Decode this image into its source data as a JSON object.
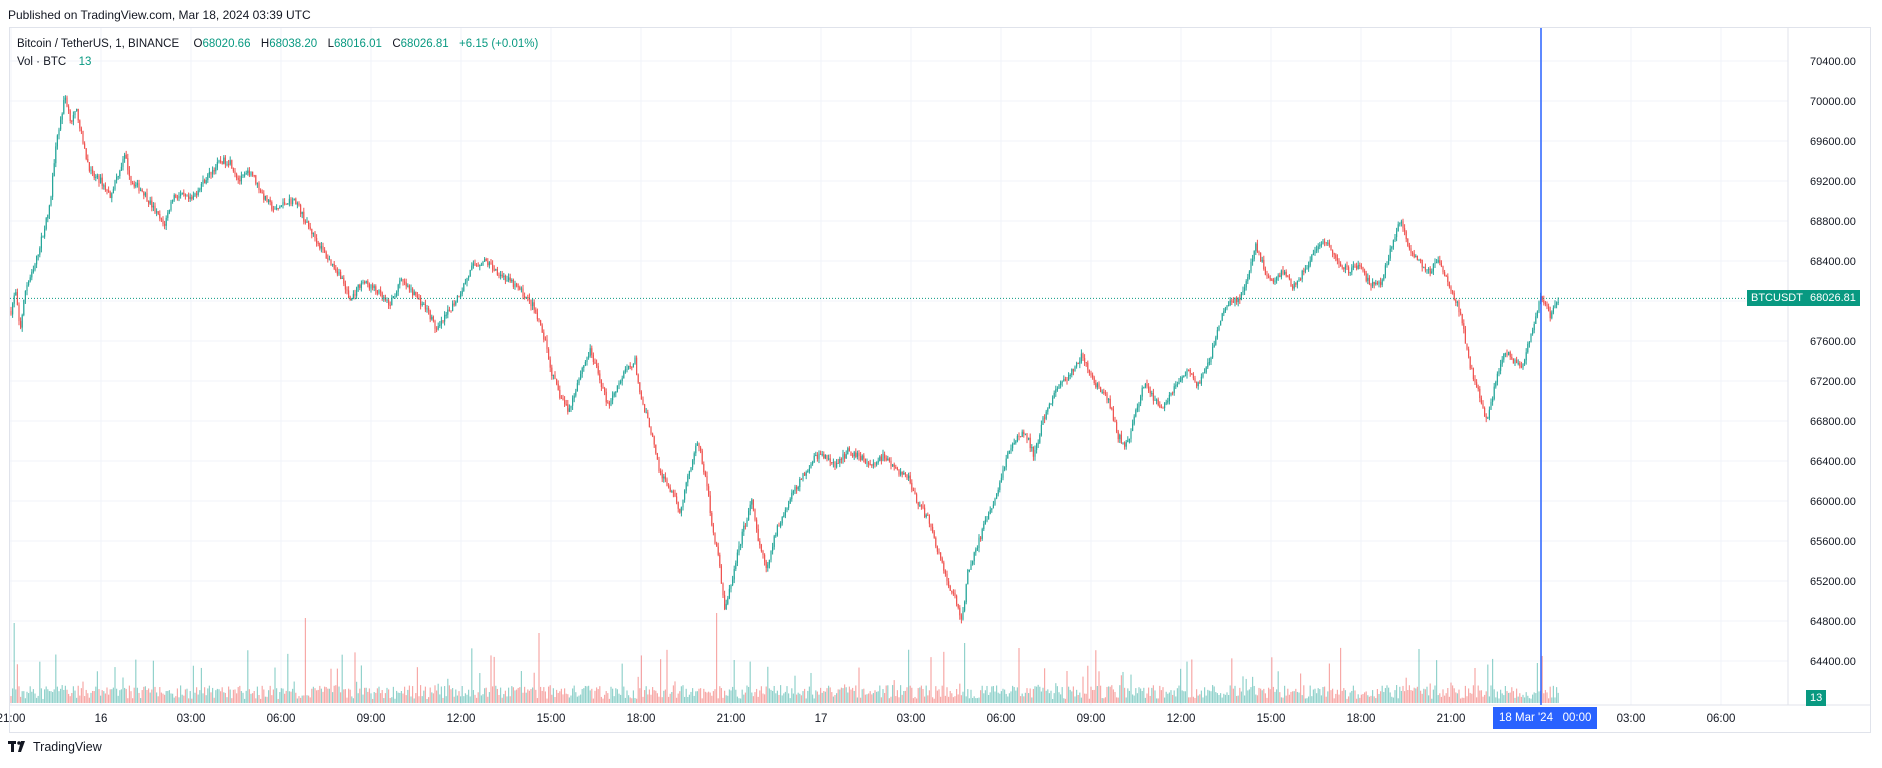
{
  "header": {
    "published": "Published on TradingView.com, Mar 18, 2024 03:39 UTC"
  },
  "legend": {
    "symbol": "Bitcoin / TetherUS, 1, BINANCE",
    "o_label": "O",
    "o_value": "68020.66",
    "h_label": "H",
    "h_value": "68038.20",
    "l_label": "L",
    "l_value": "68016.01",
    "c_label": "C",
    "c_value": "68026.81",
    "change": "+6.15 (+0.01%)",
    "vol_label": "Vol · BTC",
    "vol_value": "13"
  },
  "badges": {
    "symbol": "BTCUSDT",
    "price": "68026.81",
    "volume": "13",
    "crosshair_date": "18 Mar '24",
    "crosshair_time": "00:00"
  },
  "footer": {
    "logo": "TradingView"
  },
  "colors": {
    "up": "#26a69a",
    "down": "#ef5350",
    "crosshair": "#2962ff",
    "price_line": "#089981",
    "grid": "#f0f3fa"
  },
  "chart_data": {
    "type": "candlestick",
    "title": "Bitcoin / TetherUS, 1, BINANCE",
    "interval": "1m",
    "yaxis": {
      "ticks": [
        64400,
        64800,
        65200,
        65600,
        66000,
        66400,
        66800,
        67200,
        67600,
        68000,
        68400,
        68800,
        69200,
        69600,
        70000,
        70400
      ],
      "tick_labels": [
        "64400.00",
        "64800.00",
        "65200.00",
        "65600.00",
        "66000.00",
        "66400.00",
        "66800.00",
        "67200.00",
        "67600.00",
        "68000.00",
        "68400.00",
        "68800.00",
        "69200.00",
        "69600.00",
        "70000.00",
        "70400.00"
      ],
      "range": [
        64000,
        70800
      ]
    },
    "xaxis": {
      "tick_labels": [
        "21:00",
        "16",
        "03:00",
        "06:00",
        "09:00",
        "12:00",
        "15:00",
        "18:00",
        "21:00",
        "17",
        "03:00",
        "06:00",
        "09:00",
        "12:00",
        "15:00",
        "18:00",
        "21:00",
        "18 Mar '24",
        "03:00",
        "06:00"
      ],
      "tick_hours": [
        0,
        3,
        6,
        9,
        12,
        15,
        18,
        21,
        24,
        27,
        30,
        33,
        36,
        39,
        42,
        45,
        48,
        51,
        54,
        57
      ]
    },
    "current_price": 68026.81,
    "price_path": [
      [
        0.0,
        67900
      ],
      [
        0.15,
        68100
      ],
      [
        0.3,
        67700
      ],
      [
        0.5,
        68150
      ],
      [
        0.75,
        68300
      ],
      [
        1.0,
        68600
      ],
      [
        1.3,
        68950
      ],
      [
        1.5,
        69600
      ],
      [
        1.65,
        69800
      ],
      [
        1.8,
        70050
      ],
      [
        2.0,
        69800
      ],
      [
        2.2,
        69900
      ],
      [
        2.45,
        69500
      ],
      [
        2.7,
        69250
      ],
      [
        3.0,
        69200
      ],
      [
        3.3,
        69050
      ],
      [
        3.6,
        69300
      ],
      [
        3.8,
        69450
      ],
      [
        4.0,
        69200
      ],
      [
        4.4,
        69100
      ],
      [
        4.8,
        68900
      ],
      [
        5.1,
        68750
      ],
      [
        5.4,
        69050
      ],
      [
        5.7,
        69050
      ],
      [
        6.0,
        69000
      ],
      [
        6.3,
        69150
      ],
      [
        6.7,
        69300
      ],
      [
        7.0,
        69400
      ],
      [
        7.3,
        69400
      ],
      [
        7.6,
        69200
      ],
      [
        8.0,
        69300
      ],
      [
        8.4,
        69050
      ],
      [
        8.8,
        68900
      ],
      [
        9.2,
        69000
      ],
      [
        9.5,
        69000
      ],
      [
        9.8,
        68800
      ],
      [
        10.2,
        68600
      ],
      [
        10.5,
        68450
      ],
      [
        11.0,
        68250
      ],
      [
        11.3,
        68000
      ],
      [
        11.7,
        68200
      ],
      [
        12.2,
        68100
      ],
      [
        12.6,
        67950
      ],
      [
        13.0,
        68200
      ],
      [
        13.5,
        68050
      ],
      [
        13.9,
        67900
      ],
      [
        14.2,
        67700
      ],
      [
        14.6,
        67900
      ],
      [
        15.0,
        68100
      ],
      [
        15.4,
        68350
      ],
      [
        15.8,
        68400
      ],
      [
        16.2,
        68300
      ],
      [
        16.6,
        68200
      ],
      [
        17.0,
        68100
      ],
      [
        17.4,
        67950
      ],
      [
        17.8,
        67600
      ],
      [
        18.0,
        67300
      ],
      [
        18.3,
        67050
      ],
      [
        18.6,
        66900
      ],
      [
        19.0,
        67300
      ],
      [
        19.3,
        67500
      ],
      [
        19.6,
        67250
      ],
      [
        19.9,
        66950
      ],
      [
        20.2,
        67150
      ],
      [
        20.5,
        67300
      ],
      [
        20.8,
        67400
      ],
      [
        21.0,
        67000
      ],
      [
        21.3,
        66750
      ],
      [
        21.6,
        66300
      ],
      [
        22.0,
        66100
      ],
      [
        22.3,
        65900
      ],
      [
        22.6,
        66300
      ],
      [
        22.9,
        66600
      ],
      [
        23.2,
        66150
      ],
      [
        23.4,
        65700
      ],
      [
        23.6,
        65400
      ],
      [
        23.8,
        64900
      ],
      [
        24.1,
        65300
      ],
      [
        24.4,
        65700
      ],
      [
        24.7,
        66000
      ],
      [
        24.9,
        65600
      ],
      [
        25.2,
        65300
      ],
      [
        25.5,
        65700
      ],
      [
        25.8,
        65900
      ],
      [
        26.1,
        66100
      ],
      [
        26.4,
        66250
      ],
      [
        26.8,
        66450
      ],
      [
        27.1,
        66450
      ],
      [
        27.5,
        66350
      ],
      [
        27.9,
        66500
      ],
      [
        28.3,
        66450
      ],
      [
        28.7,
        66350
      ],
      [
        29.1,
        66450
      ],
      [
        29.5,
        66300
      ],
      [
        29.9,
        66250
      ],
      [
        30.2,
        66000
      ],
      [
        30.6,
        65800
      ],
      [
        30.9,
        65500
      ],
      [
        31.2,
        65200
      ],
      [
        31.5,
        65000
      ],
      [
        31.7,
        64800
      ],
      [
        31.9,
        65300
      ],
      [
        32.2,
        65550
      ],
      [
        32.5,
        65800
      ],
      [
        32.8,
        66000
      ],
      [
        33.1,
        66350
      ],
      [
        33.4,
        66600
      ],
      [
        33.8,
        66700
      ],
      [
        34.1,
        66450
      ],
      [
        34.4,
        66800
      ],
      [
        34.8,
        67100
      ],
      [
        35.1,
        67200
      ],
      [
        35.4,
        67300
      ],
      [
        35.7,
        67450
      ],
      [
        36.0,
        67250
      ],
      [
        36.3,
        67100
      ],
      [
        36.6,
        67000
      ],
      [
        36.9,
        66650
      ],
      [
        37.2,
        66550
      ],
      [
        37.5,
        66900
      ],
      [
        37.8,
        67200
      ],
      [
        38.1,
        67000
      ],
      [
        38.4,
        66950
      ],
      [
        38.8,
        67150
      ],
      [
        39.2,
        67300
      ],
      [
        39.6,
        67150
      ],
      [
        40.0,
        67450
      ],
      [
        40.3,
        67800
      ],
      [
        40.6,
        68000
      ],
      [
        40.9,
        68000
      ],
      [
        41.2,
        68200
      ],
      [
        41.5,
        68550
      ],
      [
        41.8,
        68300
      ],
      [
        42.1,
        68200
      ],
      [
        42.4,
        68300
      ],
      [
        42.7,
        68150
      ],
      [
        43.0,
        68250
      ],
      [
        43.4,
        68450
      ],
      [
        43.8,
        68600
      ],
      [
        44.2,
        68400
      ],
      [
        44.6,
        68300
      ],
      [
        45.0,
        68350
      ],
      [
        45.3,
        68150
      ],
      [
        45.7,
        68200
      ],
      [
        46.0,
        68550
      ],
      [
        46.3,
        68800
      ],
      [
        46.6,
        68550
      ],
      [
        46.9,
        68400
      ],
      [
        47.3,
        68300
      ],
      [
        47.6,
        68400
      ],
      [
        48.0,
        68100
      ],
      [
        48.3,
        67900
      ],
      [
        48.6,
        67400
      ],
      [
        48.9,
        67100
      ],
      [
        49.2,
        66800
      ],
      [
        49.5,
        67200
      ],
      [
        49.8,
        67500
      ],
      [
        50.1,
        67400
      ],
      [
        50.4,
        67350
      ],
      [
        50.7,
        67700
      ],
      [
        51.0,
        68050
      ],
      [
        51.3,
        67850
      ],
      [
        51.6,
        68026
      ]
    ],
    "volume": {
      "scale_top_label": "13",
      "description": "1-minute BTC volume bars, colored by candle direction; spikes near hours 23.5, 31.8 and 48.8"
    }
  }
}
